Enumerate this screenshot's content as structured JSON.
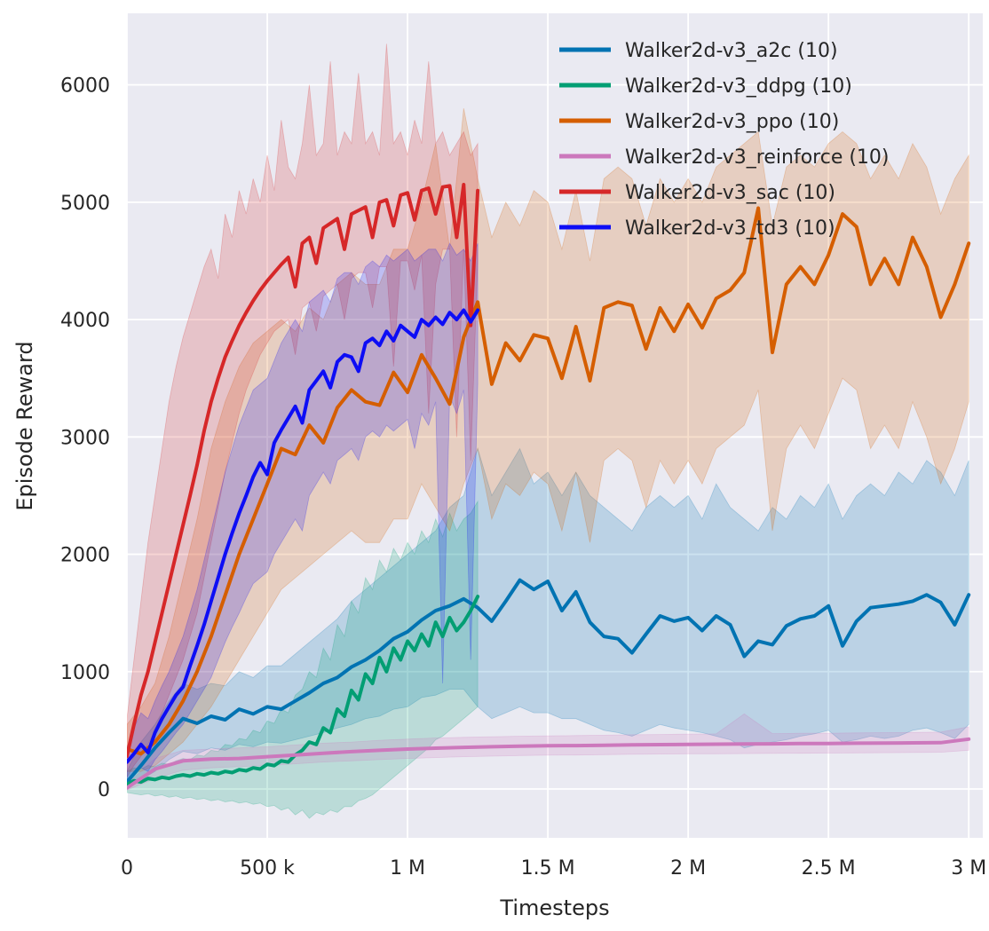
{
  "chart_data": {
    "type": "line",
    "title": "",
    "xlabel": "Timesteps",
    "ylabel": "Episode Reward",
    "x_unit_of_series": "thousands of timesteps",
    "xlim": [
      0,
      3050
    ],
    "ylim": [
      -416,
      6610
    ],
    "grid": true,
    "legend_position": "upper right",
    "plot_bg": "#eaeaf2",
    "grid_color": "#ffffff",
    "text_color": "#262626",
    "band_opacity": 0.2,
    "line_width": 4,
    "x_ticks": [
      {
        "value": 0,
        "label": "0"
      },
      {
        "value": 500,
        "label": "500 k"
      },
      {
        "value": 1000,
        "label": "1 M"
      },
      {
        "value": 1500,
        "label": "1.5 M"
      },
      {
        "value": 2000,
        "label": "2 M"
      },
      {
        "value": 2500,
        "label": "2.5 M"
      },
      {
        "value": 3000,
        "label": "3 M"
      }
    ],
    "y_ticks": [
      {
        "value": 0,
        "label": "0"
      },
      {
        "value": 1000,
        "label": "1000"
      },
      {
        "value": 2000,
        "label": "2000"
      },
      {
        "value": 3000,
        "label": "3000"
      },
      {
        "value": 4000,
        "label": "4000"
      },
      {
        "value": 5000,
        "label": "5000"
      },
      {
        "value": 6000,
        "label": "6000"
      }
    ],
    "series": [
      {
        "name": "a2c",
        "label": "Walker2d-v3_a2c (10)",
        "color": "#0173b2",
        "x_step": 50,
        "mean": [
          60,
          200,
          350,
          480,
          600,
          560,
          620,
          590,
          680,
          640,
          700,
          680,
          750,
          820,
          900,
          950,
          1040,
          1100,
          1180,
          1280,
          1340,
          1440,
          1520,
          1560,
          1620,
          1545,
          1430,
          1600,
          1780,
          1700,
          1770,
          1520,
          1680,
          1420,
          1300,
          1280,
          1160,
          1320,
          1475,
          1430,
          1460,
          1350,
          1475,
          1400,
          1130,
          1260,
          1230,
          1390,
          1450,
          1475,
          1560,
          1220,
          1430,
          1545,
          1560,
          1575,
          1600,
          1655,
          1590,
          1400,
          1655
        ],
        "lo": [
          0,
          80,
          150,
          250,
          320,
          300,
          350,
          330,
          380,
          360,
          400,
          390,
          420,
          450,
          480,
          520,
          550,
          600,
          620,
          680,
          700,
          780,
          800,
          850,
          850,
          700,
          600,
          650,
          700,
          650,
          650,
          600,
          600,
          550,
          500,
          480,
          450,
          500,
          550,
          520,
          500,
          480,
          450,
          420,
          350,
          380,
          400,
          420,
          450,
          470,
          500,
          400,
          420,
          450,
          430,
          450,
          500,
          520,
          480,
          430,
          550
        ],
        "hi": [
          150,
          400,
          550,
          750,
          900,
          850,
          900,
          880,
          1000,
          950,
          1050,
          1050,
          1150,
          1250,
          1350,
          1450,
          1600,
          1700,
          1800,
          1900,
          2000,
          2100,
          2200,
          2400,
          2500,
          2900,
          2500,
          2700,
          2900,
          2600,
          2700,
          2500,
          2700,
          2500,
          2400,
          2300,
          2200,
          2400,
          2500,
          2400,
          2500,
          2300,
          2600,
          2400,
          2300,
          2200,
          2400,
          2300,
          2500,
          2400,
          2600,
          2300,
          2500,
          2600,
          2500,
          2700,
          2600,
          2800,
          2700,
          2500,
          2800
        ]
      },
      {
        "name": "ddpg",
        "label": "Walker2d-v3_ddpg (10)",
        "color": "#029e73",
        "x_step": 25,
        "mean": [
          40,
          70,
          60,
          90,
          80,
          100,
          90,
          110,
          120,
          110,
          130,
          120,
          140,
          130,
          150,
          140,
          165,
          155,
          180,
          170,
          210,
          200,
          240,
          230,
          290,
          330,
          400,
          380,
          520,
          480,
          680,
          620,
          840,
          760,
          980,
          900,
          1120,
          1000,
          1200,
          1100,
          1260,
          1180,
          1320,
          1220,
          1420,
          1300,
          1460,
          1350,
          1420,
          1520,
          1640
        ],
        "lo": [
          -30,
          -40,
          -50,
          -40,
          -60,
          -50,
          -70,
          -60,
          -80,
          -70,
          -90,
          -80,
          -100,
          -90,
          -110,
          -100,
          -120,
          -110,
          -130,
          -120,
          -150,
          -140,
          -180,
          -160,
          -220,
          -180,
          -250,
          -200,
          -220,
          -180,
          -200,
          -150,
          -150,
          -100,
          -80,
          -50,
          0,
          50,
          100,
          150,
          200,
          250,
          300,
          350,
          420,
          450,
          500,
          550,
          600,
          650,
          700
        ],
        "hi": [
          150,
          180,
          170,
          200,
          190,
          220,
          210,
          240,
          260,
          250,
          290,
          280,
          330,
          320,
          380,
          370,
          430,
          420,
          500,
          480,
          580,
          560,
          680,
          650,
          800,
          850,
          1000,
          950,
          1200,
          1100,
          1400,
          1300,
          1600,
          1500,
          1800,
          1700,
          1950,
          1850,
          2050,
          1950,
          2100,
          2000,
          2200,
          2100,
          2300,
          2150,
          2350,
          2200,
          2300,
          2350,
          2450
        ]
      },
      {
        "name": "ppo",
        "label": "Walker2d-v3_ppo (10)",
        "color": "#d55e00",
        "x_step": 50,
        "mean": [
          340,
          300,
          400,
          550,
          750,
          1000,
          1300,
          1650,
          2000,
          2300,
          2600,
          2900,
          2850,
          3100,
          2950,
          3250,
          3400,
          3300,
          3270,
          3550,
          3380,
          3700,
          3500,
          3280,
          3850,
          4150,
          3450,
          3800,
          3650,
          3870,
          3840,
          3500,
          3940,
          3480,
          4100,
          4150,
          4120,
          3750,
          4100,
          3900,
          4130,
          3930,
          4180,
          4250,
          4400,
          4950,
          3720,
          4300,
          4450,
          4300,
          4550,
          4900,
          4790,
          4300,
          4520,
          4300,
          4700,
          4450,
          4020,
          4300,
          4650
        ],
        "lo": [
          150,
          150,
          200,
          300,
          400,
          550,
          700,
          900,
          1100,
          1300,
          1500,
          1700,
          1800,
          1900,
          2000,
          2100,
          2200,
          2100,
          2100,
          2300,
          2300,
          2600,
          2400,
          2200,
          2600,
          2900,
          2300,
          2600,
          2500,
          2700,
          2600,
          2200,
          2700,
          2100,
          2800,
          2900,
          2800,
          2400,
          2800,
          2600,
          2800,
          2600,
          2900,
          3000,
          3100,
          3400,
          2200,
          2900,
          3100,
          2900,
          3200,
          3500,
          3400,
          2900,
          3100,
          2900,
          3300,
          3000,
          2600,
          2900,
          3300
        ],
        "hi": [
          550,
          700,
          900,
          1300,
          1800,
          2300,
          2900,
          3300,
          3600,
          3800,
          3900,
          4000,
          3900,
          4100,
          4000,
          4300,
          4400,
          4300,
          4300,
          4600,
          4600,
          5000,
          5500,
          4600,
          5800,
          5200,
          4700,
          5000,
          4800,
          5100,
          5000,
          4600,
          5100,
          4500,
          5200,
          5300,
          5200,
          4800,
          5200,
          5000,
          5200,
          5000,
          5300,
          5400,
          5500,
          5600,
          4800,
          5300,
          5400,
          5300,
          5500,
          5600,
          5500,
          5200,
          5400,
          5200,
          5500,
          5300,
          4900,
          5200,
          5400
        ]
      },
      {
        "name": "reinforce",
        "label": "Walker2d-v3_reinforce (10)",
        "color": "#cc78bc",
        "x_step": 100,
        "mean": [
          10,
          170,
          240,
          255,
          260,
          275,
          290,
          305,
          318,
          330,
          340,
          348,
          355,
          360,
          365,
          368,
          370,
          373,
          376,
          378,
          380,
          382,
          384,
          385,
          387,
          388,
          390,
          391,
          393,
          395,
          425
        ],
        "lo": [
          -10,
          90,
          160,
          180,
          190,
          200,
          215,
          230,
          240,
          250,
          260,
          268,
          275,
          280,
          285,
          288,
          290,
          293,
          296,
          298,
          300,
          300,
          302,
          303,
          305,
          306,
          308,
          309,
          311,
          313,
          330
        ],
        "hi": [
          40,
          260,
          330,
          340,
          350,
          360,
          375,
          390,
          400,
          415,
          425,
          435,
          440,
          445,
          450,
          452,
          455,
          458,
          462,
          464,
          468,
          470,
          640,
          472,
          475,
          476,
          478,
          480,
          482,
          485,
          530
        ]
      },
      {
        "name": "sac",
        "label": "Walker2d-v3_sac (10)",
        "color": "#d62728",
        "x_step": 25,
        "mean": [
          280,
          550,
          800,
          1000,
          1250,
          1500,
          1750,
          2000,
          2250,
          2500,
          2760,
          3050,
          3300,
          3500,
          3680,
          3820,
          3950,
          4060,
          4160,
          4250,
          4330,
          4400,
          4470,
          4530,
          4280,
          4650,
          4700,
          4480,
          4780,
          4820,
          4860,
          4600,
          4900,
          4930,
          4960,
          4700,
          5000,
          5020,
          4800,
          5060,
          5080,
          4850,
          5100,
          5120,
          4900,
          5130,
          5140,
          4700,
          5150,
          3950,
          5100
        ],
        "lo": [
          100,
          200,
          280,
          380,
          500,
          650,
          800,
          950,
          1100,
          1300,
          1500,
          1800,
          2100,
          2400,
          2700,
          2950,
          3200,
          3400,
          3550,
          3700,
          3800,
          3900,
          3950,
          4000,
          3700,
          4100,
          4150,
          3900,
          4200,
          4250,
          4300,
          4000,
          4350,
          4400,
          4400,
          4100,
          4450,
          4450,
          3600,
          4500,
          4500,
          4250,
          4550,
          3200,
          4300,
          4600,
          4600,
          3000,
          4600,
          2800,
          4500
        ],
        "hi": [
          600,
          1100,
          1600,
          2100,
          2500,
          2900,
          3300,
          3600,
          3850,
          4050,
          4250,
          4450,
          4600,
          4350,
          4900,
          4700,
          5100,
          4900,
          5200,
          5000,
          5400,
          5100,
          5700,
          5300,
          5200,
          5500,
          6000,
          5400,
          5500,
          6200,
          5400,
          5600,
          5500,
          6100,
          5500,
          5600,
          5400,
          6350,
          5500,
          5600,
          5400,
          5700,
          5500,
          6200,
          5500,
          5600,
          5400,
          5500,
          5600,
          5400,
          5500
        ]
      },
      {
        "name": "td3",
        "label": "Walker2d-v3_td3 (10)",
        "color": "#0d0df5",
        "x_step": 25,
        "mean": [
          230,
          300,
          380,
          310,
          480,
          600,
          700,
          800,
          870,
          1050,
          1220,
          1400,
          1600,
          1800,
          2000,
          2180,
          2350,
          2500,
          2660,
          2780,
          2680,
          2950,
          3060,
          3160,
          3260,
          3120,
          3400,
          3480,
          3560,
          3420,
          3640,
          3700,
          3680,
          3560,
          3800,
          3840,
          3780,
          3900,
          3820,
          3950,
          3900,
          3850,
          4000,
          3950,
          4020,
          3960,
          4060,
          4000,
          4080,
          3980,
          4080
        ],
        "lo": [
          80,
          120,
          180,
          150,
          250,
          320,
          400,
          480,
          550,
          650,
          750,
          850,
          950,
          1100,
          1250,
          1380,
          1500,
          1630,
          1750,
          1800,
          1850,
          2000,
          2100,
          2200,
          2300,
          2200,
          2500,
          2600,
          2700,
          2600,
          2800,
          2850,
          2900,
          2800,
          3000,
          3050,
          3000,
          3100,
          3050,
          3100,
          3150,
          2900,
          3200,
          3100,
          3300,
          900,
          3350,
          3200,
          3400,
          1100,
          3450
        ],
        "hi": [
          350,
          520,
          650,
          600,
          750,
          880,
          1000,
          1150,
          1300,
          1500,
          1700,
          1950,
          2200,
          2450,
          2700,
          2900,
          3100,
          3250,
          3400,
          3450,
          3500,
          3650,
          3800,
          3900,
          4000,
          3900,
          4150,
          4200,
          4250,
          4150,
          4350,
          4400,
          4400,
          4300,
          4450,
          4500,
          4450,
          4550,
          4500,
          4550,
          4600,
          4500,
          4550,
          4600,
          4600,
          4500,
          4650,
          4550,
          4600,
          4500,
          4650
        ]
      }
    ],
    "legend": {
      "swatch_x1": 630,
      "swatch_x2": 688,
      "text_x": 704,
      "first_row_y": 56,
      "row_spacing": 40
    }
  }
}
